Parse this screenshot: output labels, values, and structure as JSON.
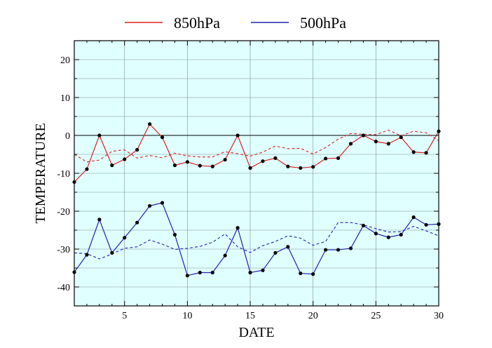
{
  "chart_data": {
    "type": "line",
    "title": "",
    "xlabel": "DATE",
    "ylabel": "TEMPERATURE",
    "xlim": [
      1,
      30
    ],
    "ylim": [
      -45,
      25
    ],
    "xticks": [
      5,
      10,
      15,
      20,
      25,
      30
    ],
    "yticks": [
      -40,
      -30,
      -20,
      -10,
      0,
      10,
      20
    ],
    "grid": true,
    "zero_line": true,
    "legend_position": "top-center",
    "background_color": "#e0ffff",
    "x": [
      1,
      2,
      3,
      4,
      5,
      6,
      7,
      8,
      9,
      10,
      11,
      12,
      13,
      14,
      15,
      16,
      17,
      18,
      19,
      20,
      21,
      22,
      23,
      24,
      25,
      26,
      27,
      28,
      29,
      30
    ],
    "series": [
      {
        "name": "850hPa",
        "color": "#dd2222",
        "values": [
          -12.3,
          -8.9,
          0.0,
          -7.9,
          -6.3,
          -3.8,
          3.0,
          -0.5,
          -7.9,
          -7.0,
          -8.0,
          -8.2,
          -6.4,
          0.0,
          -8.6,
          -6.8,
          -6.0,
          -8.2,
          -8.6,
          -8.3,
          -6.1,
          -6.0,
          -2.2,
          0.0,
          -1.6,
          -2.2,
          -0.5,
          -4.4,
          -4.6,
          1.1
        ],
        "normal": [
          -5.0,
          -7.0,
          -6.5,
          -4.2,
          -3.8,
          -6.0,
          -5.3,
          -5.9,
          -4.7,
          -5.4,
          -5.7,
          -5.7,
          -4.3,
          -4.8,
          -5.5,
          -4.4,
          -2.8,
          -3.5,
          -3.4,
          -4.9,
          -3.2,
          -1.0,
          0.5,
          0.3,
          0.2,
          1.4,
          -0.1,
          1.1,
          0.7,
          -1.4
        ]
      },
      {
        "name": "500hPa",
        "color": "#2222aa",
        "values": [
          -36.1,
          -31.5,
          -22.2,
          -31.0,
          -27.0,
          -23.0,
          -18.6,
          -17.8,
          -26.2,
          -37.0,
          -36.2,
          -36.2,
          -31.7,
          -24.4,
          -36.2,
          -35.6,
          -31.0,
          -29.4,
          -36.4,
          -36.6,
          -30.2,
          -30.2,
          -29.8,
          -23.8,
          -25.9,
          -26.9,
          -26.2,
          -21.6,
          -23.6,
          -23.4
        ],
        "normal": [
          -31.0,
          -31.2,
          -32.6,
          -31.3,
          -29.8,
          -29.4,
          -27.6,
          -28.7,
          -30.1,
          -29.8,
          -29.3,
          -28.2,
          -26.0,
          -29.4,
          -30.9,
          -29.1,
          -28.0,
          -26.5,
          -27.1,
          -29.0,
          -28.0,
          -23.0,
          -23.0,
          -23.6,
          -24.6,
          -25.5,
          -25.4,
          -24.0,
          -25.2,
          -26.5
        ]
      }
    ]
  }
}
